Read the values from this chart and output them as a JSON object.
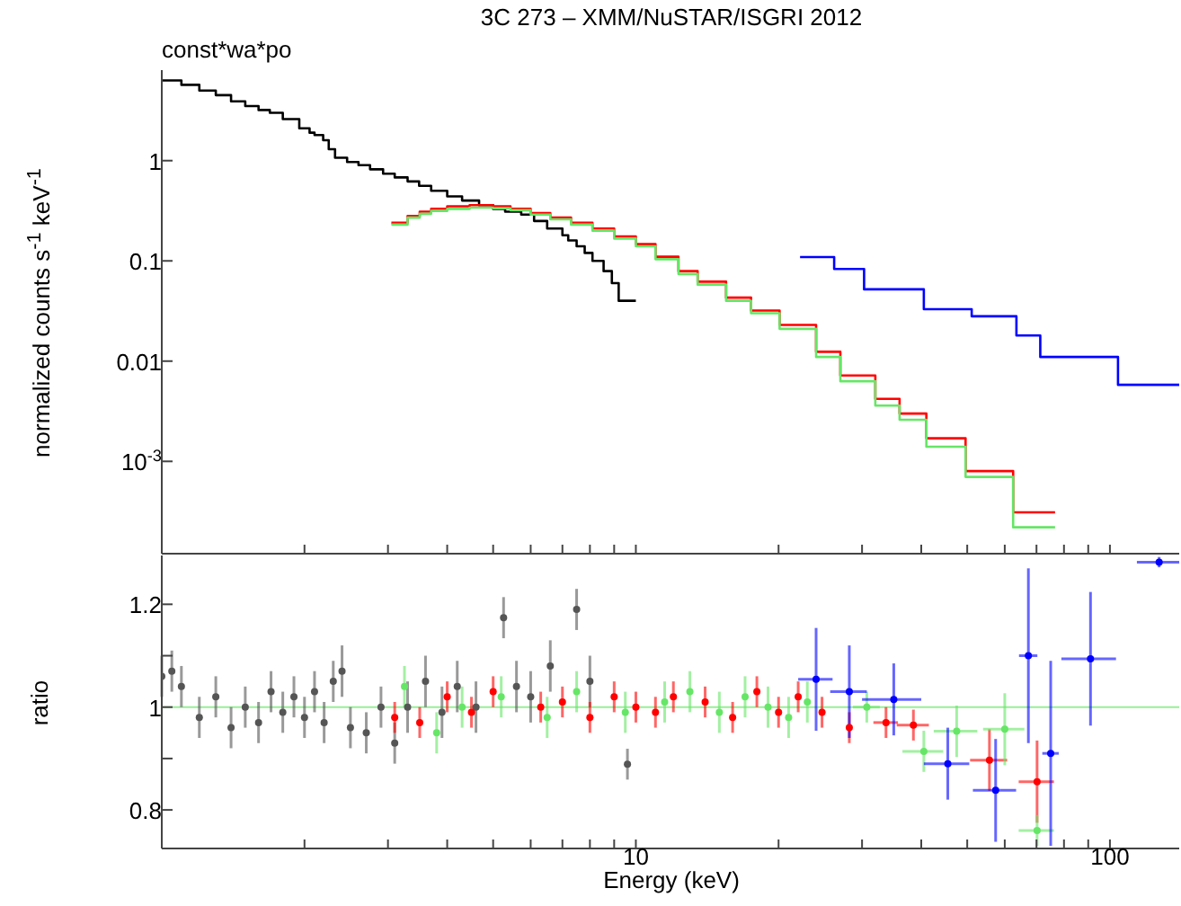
{
  "chart_data": [
    {
      "type": "step",
      "title": "3C 273 – XMM/NuSTAR/ISGRI 2012",
      "ylabel": "normalized counts s$^{-1}$ keV$^{-1}$",
      "annotations": [
        "const*wa*po"
      ],
      "log": "xy",
      "xlim": [
        1,
        140
      ],
      "xticks": [
        {
          "value": 2,
          "label": null
        },
        {
          "value": 3,
          "label": null
        },
        {
          "value": 4,
          "label": null
        },
        {
          "value": 5,
          "label": null
        },
        {
          "value": 6,
          "label": null
        },
        {
          "value": 7,
          "label": null
        },
        {
          "value": 8,
          "label": null
        },
        {
          "value": 9,
          "label": null
        },
        {
          "value": 10,
          "label": null
        },
        {
          "value": 20,
          "label": null
        },
        {
          "value": 30,
          "label": null
        },
        {
          "value": 40,
          "label": null
        },
        {
          "value": 50,
          "label": null
        },
        {
          "value": 60,
          "label": null
        },
        {
          "value": 70,
          "label": null
        },
        {
          "value": 80,
          "label": null
        },
        {
          "value": 90,
          "label": null
        },
        {
          "value": 100,
          "label": null
        }
      ],
      "ylim": [
        0.00012,
        8
      ],
      "yticks": [
        {
          "value": 0.001,
          "label": "10$^{-3}$"
        },
        0.01,
        0.1,
        1
      ],
      "tick_labels": "y",
      "legend": false,
      "grid": false,
      "marker": "none",
      "series": [
        {
          "color": "#000000",
          "x": [
            1,
            1.1,
            1.2,
            1.3,
            1.4,
            1.5,
            1.6,
            1.69,
            1.8,
            1.95,
            2.05,
            2.1,
            2.19,
            2.25,
            2.32,
            2.46,
            2.6,
            2.75,
            2.93,
            3.1,
            3.3,
            3.49,
            3.7,
            4,
            4.3,
            4.67,
            5,
            5.3,
            5.73,
            6.1,
            6.5,
            7,
            7.2,
            7.5,
            7.8,
            8.1,
            8.55,
            8.9,
            9.2,
            10
          ],
          "values": [
            6.3,
            5.7,
            5,
            4.5,
            3.9,
            3.5,
            3.2,
            3,
            2.6,
            2.1,
            1.9,
            1.8,
            1.6,
            1.3,
            1.07,
            0.97,
            0.9,
            0.82,
            0.74,
            0.68,
            0.62,
            0.56,
            0.5,
            0.44,
            0.4,
            0.36,
            0.33,
            0.31,
            0.29,
            0.25,
            0.21,
            0.18,
            0.16,
            0.14,
            0.12,
            0.1,
            0.079,
            0.06,
            0.04,
            0.04
          ]
        },
        {
          "color": "#ff0000",
          "x": [
            3.05,
            3.3,
            3.5,
            3.7,
            4,
            4.46,
            5,
            5.44,
            6,
            6.6,
            7.3,
            8.1,
            9,
            10,
            11,
            12.3,
            13.5,
            15.5,
            17.5,
            20.1,
            24,
            27,
            32,
            36,
            41,
            49.6,
            62.5,
            76.6
          ],
          "values": [
            0.24,
            0.28,
            0.31,
            0.33,
            0.35,
            0.36,
            0.35,
            0.33,
            0.3,
            0.27,
            0.24,
            0.21,
            0.175,
            0.147,
            0.11,
            0.079,
            0.062,
            0.043,
            0.032,
            0.023,
            0.0124,
            0.0072,
            0.0042,
            0.003,
            0.0017,
            0.0008,
            0.00031,
            0.00031
          ]
        },
        {
          "color": "#66e666",
          "x": [
            3.05,
            3.3,
            3.5,
            3.7,
            4,
            4.46,
            5,
            5.44,
            6,
            6.6,
            7.3,
            8.1,
            9,
            10,
            11,
            12.3,
            13.5,
            15.5,
            17.5,
            20.1,
            24,
            27,
            32,
            36,
            41,
            49.6,
            62.5,
            76.6
          ],
          "values": [
            0.23,
            0.27,
            0.295,
            0.315,
            0.33,
            0.34,
            0.335,
            0.32,
            0.29,
            0.26,
            0.23,
            0.2,
            0.167,
            0.14,
            0.104,
            0.074,
            0.058,
            0.04,
            0.03,
            0.021,
            0.011,
            0.0063,
            0.0036,
            0.0026,
            0.0014,
            0.0007,
            0.00022,
            0.00022
          ]
        },
        {
          "color": "#0000ff",
          "x": [
            22.2,
            26.2,
            30.3,
            40.5,
            51.1,
            63.5,
            71.3,
            104,
            140
          ],
          "values": [
            0.109,
            0.083,
            0.052,
            0.033,
            0.028,
            0.018,
            0.011,
            0.0058,
            0.0058
          ]
        }
      ]
    },
    {
      "type": "scatter",
      "xlabel": "Energy (keV)",
      "ylabel": "ratio",
      "log": "x",
      "xlim": [
        1,
        140
      ],
      "xticks": [
        {
          "value": 2,
          "label": null
        },
        {
          "value": 3,
          "label": null
        },
        {
          "value": 4,
          "label": null
        },
        {
          "value": 5,
          "label": null
        },
        {
          "value": 6,
          "label": null
        },
        {
          "value": 7,
          "label": null
        },
        {
          "value": 8,
          "label": null
        },
        {
          "value": 9,
          "label": null
        },
        10,
        {
          "value": 20,
          "label": null
        },
        {
          "value": 30,
          "label": null
        },
        {
          "value": 40,
          "label": null
        },
        {
          "value": 50,
          "label": null
        },
        {
          "value": 60,
          "label": null
        },
        {
          "value": 70,
          "label": null
        },
        {
          "value": 80,
          "label": null
        },
        {
          "value": 90,
          "label": null
        },
        100
      ],
      "ylim": [
        0.725,
        1.295
      ],
      "yticks": [
        0.8,
        {
          "value": 0.9,
          "label": null
        },
        1,
        {
          "value": 1.1,
          "label": null
        },
        1.2
      ],
      "legend": false,
      "grid": false,
      "ref_lines": [
        {
          "axis": "y",
          "value": 1,
          "color": "#99ee99"
        }
      ],
      "series": [
        {
          "color": "#555555",
          "x": [
            1,
            1.05,
            1.1,
            1.2,
            1.3,
            1.4,
            1.5,
            1.6,
            1.7,
            1.8,
            1.9,
            2,
            2.1,
            2.2,
            2.3,
            2.4,
            2.5,
            2.7,
            2.9,
            3.1,
            3.3,
            3.6,
            3.9,
            4.2,
            4.6,
            5.26,
            5.6,
            6,
            6.6,
            7.5,
            8,
            9.6
          ],
          "values": [
            1.06,
            1.07,
            1.04,
            0.98,
            1.02,
            0.96,
            1,
            0.97,
            1.03,
            0.99,
            1.02,
            0.98,
            1.03,
            0.97,
            1.05,
            1.07,
            0.96,
            0.95,
            1,
            0.93,
            1,
            1.05,
            0.99,
            1.04,
            1,
            1.174,
            1.04,
            1.02,
            1.08,
            1.19,
            1.05,
            0.889
          ],
          "errors": [
            0.04,
            0.04,
            0.04,
            0.04,
            0.04,
            0.04,
            0.04,
            0.04,
            0.04,
            0.04,
            0.04,
            0.04,
            0.04,
            0.04,
            0.04,
            0.05,
            0.04,
            0.04,
            0.04,
            0.04,
            0.05,
            0.05,
            0.05,
            0.05,
            0.05,
            0.04,
            0.05,
            0.05,
            0.05,
            0.04,
            0.05,
            0.03
          ]
        },
        {
          "color": "#ff0000",
          "x": [
            3.1,
            3.5,
            4,
            4.5,
            5,
            6.3,
            7,
            8,
            9,
            10,
            11,
            12,
            14,
            16,
            18,
            20,
            22,
            24.7,
            28.2,
            33.7,
            38.5,
            55.7,
            70.2
          ],
          "values": [
            0.98,
            0.97,
            1.02,
            0.99,
            1.03,
            1,
            1.01,
            0.98,
            1.02,
            1,
            0.99,
            1.02,
            1.01,
            0.98,
            1.03,
            0.99,
            1.02,
            0.99,
            0.96,
            0.97,
            0.965,
            0.897,
            0.855
          ],
          "errors": [
            0.03,
            0.03,
            0.03,
            0.03,
            0.03,
            0.03,
            0.03,
            0.03,
            0.03,
            0.03,
            0.03,
            0.03,
            0.03,
            0.03,
            0.03,
            0.03,
            0.03,
            0.03,
            0.03,
            0.03,
            0.03,
            0.06,
            0.08
          ],
          "xerrors": [
            null,
            null,
            null,
            null,
            null,
            null,
            null,
            null,
            null,
            null,
            null,
            null,
            null,
            null,
            null,
            null,
            null,
            null,
            null,
            2,
            3,
            5,
            6
          ]
        },
        {
          "color": "#66e666",
          "x": [
            3.25,
            3.8,
            4.3,
            5.2,
            6.5,
            7.5,
            9.5,
            11.5,
            13,
            15,
            17,
            19,
            21,
            23,
            30.7,
            40.5,
            47.5,
            60,
            70.2
          ],
          "values": [
            1.04,
            0.95,
            1,
            1.02,
            0.98,
            1.03,
            0.99,
            1.01,
            1.03,
            0.99,
            1.02,
            1,
            0.98,
            1.01,
            1,
            0.914,
            0.953,
            0.957,
            0.76
          ],
          "errors": [
            0.04,
            0.04,
            0.04,
            0.04,
            0.04,
            0.04,
            0.04,
            0.04,
            0.04,
            0.04,
            0.04,
            0.04,
            0.04,
            0.04,
            0.03,
            0.04,
            0.05,
            0.07,
            0.03
          ],
          "xerrors": [
            null,
            null,
            null,
            null,
            null,
            null,
            null,
            null,
            null,
            null,
            null,
            null,
            null,
            null,
            2,
            4,
            5,
            6,
            6
          ]
        },
        {
          "color": "#0000ff",
          "x": [
            24,
            28.2,
            35,
            45.5,
            57.4,
            67.3,
            75,
            91,
            127
          ],
          "values": [
            1.054,
            1.03,
            1.015,
            0.89,
            0.838,
            1.1,
            0.91,
            1.094,
            1.282
          ],
          "errors": [
            0.1,
            0.09,
            0.07,
            0.07,
            0.1,
            0.17,
            0.18,
            0.13,
            0.01
          ],
          "xerrors": [
            2,
            2.5,
            5,
            5,
            6,
            3,
            3,
            12,
            13
          ]
        }
      ]
    }
  ]
}
